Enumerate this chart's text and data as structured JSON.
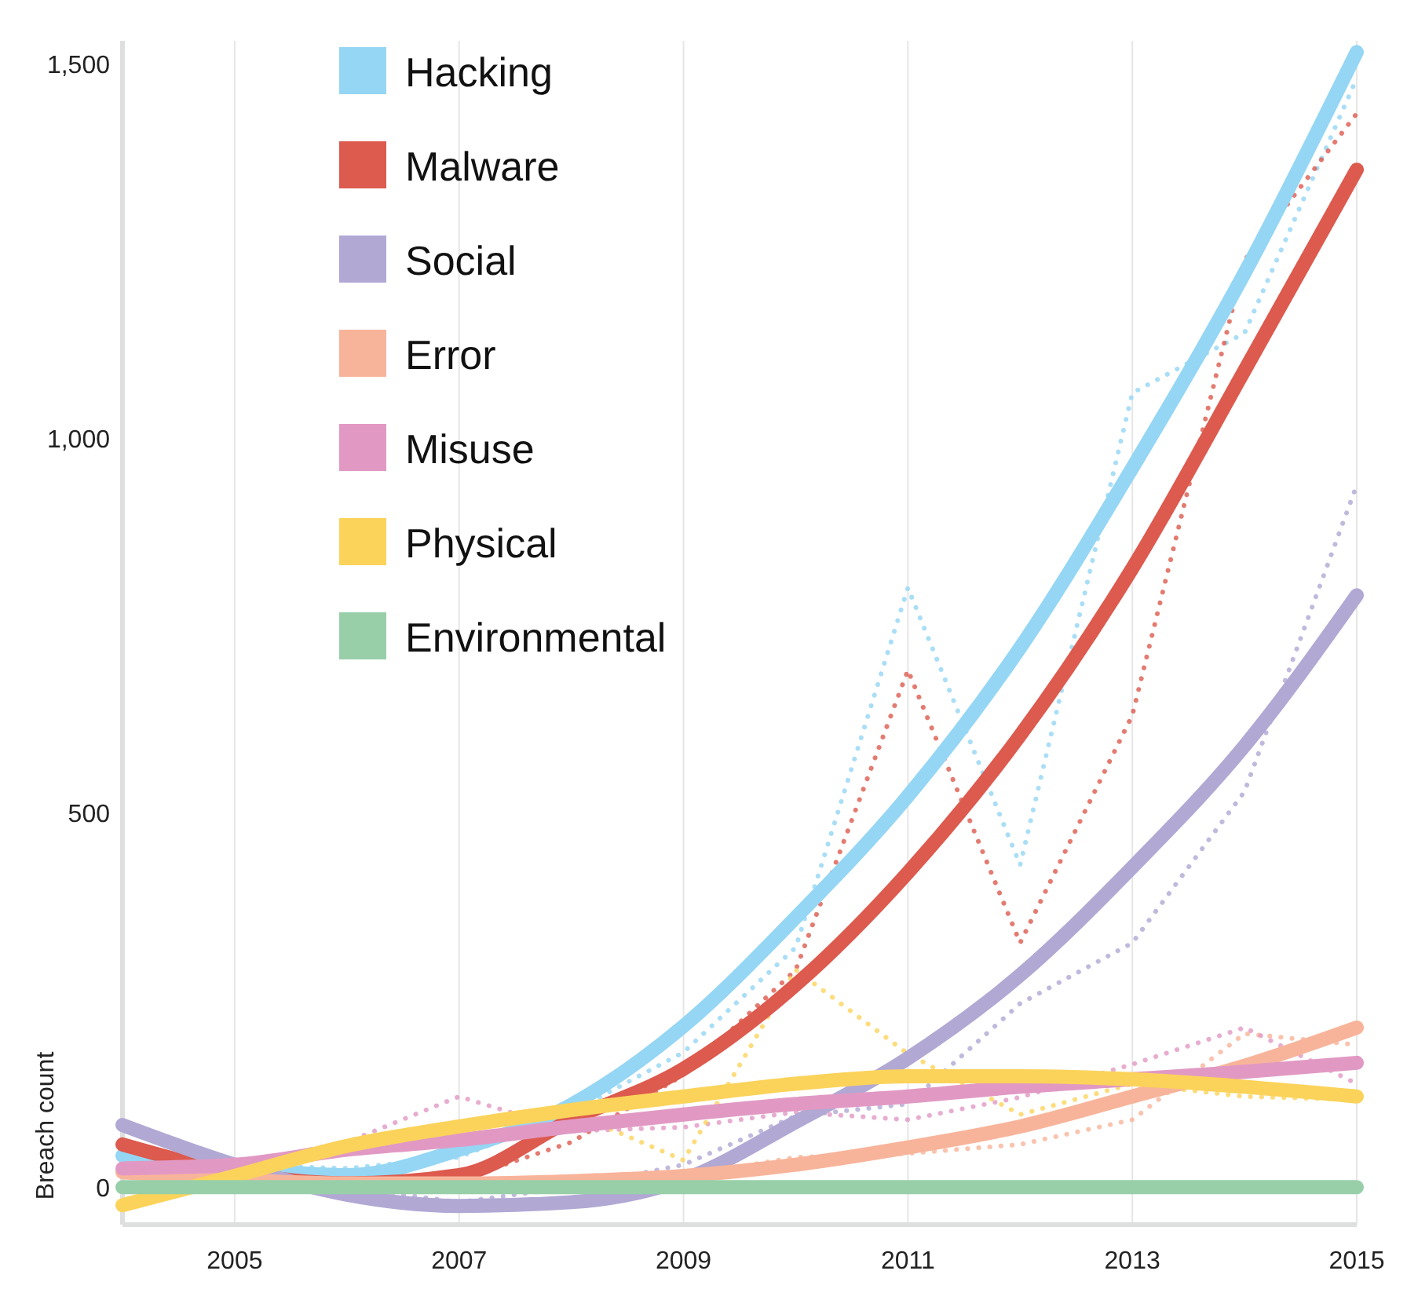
{
  "chart_data": {
    "type": "line",
    "ylabel": "Breach count",
    "x": [
      2004,
      2005,
      2006,
      2007,
      2008,
      2009,
      2010,
      2011,
      2012,
      2013,
      2014,
      2015
    ],
    "xlim": [
      2004,
      2015
    ],
    "xticks": [
      2005,
      2007,
      2009,
      2011,
      2013,
      2015
    ],
    "ylim": [
      -50,
      1530
    ],
    "yticks": [
      0,
      500,
      {
        "value": 1000,
        "label": "1,000"
      },
      {
        "value": 1500,
        "label": "1,500"
      }
    ],
    "grid": "x",
    "legend": "top left",
    "marker": "none",
    "series": [
      {
        "color": "#94d6f4",
        "line_style": "dotted",
        "values": [
          40,
          30,
          25,
          40,
          100,
          180,
          320,
          800,
          430,
          1060,
          1140,
          1480
        ]
      },
      {
        "color": "#dd5a4e",
        "line_style": "dotted",
        "values": [
          60,
          20,
          10,
          10,
          60,
          150,
          290,
          690,
          326,
          630,
          1237,
          1433
        ]
      },
      {
        "color": "#b1a8d4",
        "line_style": "dotted",
        "values": [
          80,
          30,
          0,
          -20,
          0,
          30,
          95,
          111,
          245,
          326,
          528,
          937
        ]
      },
      {
        "color": "#f8b49a",
        "line_style": "dotted",
        "values": [
          20,
          10,
          5,
          5,
          8,
          15,
          40,
          45,
          57,
          90,
          205,
          190
        ]
      },
      {
        "color": "#e199c4",
        "line_style": "dotted",
        "values": [
          25,
          30,
          60,
          121,
          75,
          80,
          100,
          90,
          120,
          164,
          213,
          138
        ]
      },
      {
        "color": "#fbd35a",
        "line_style": "dotted",
        "values": [
          -20,
          20,
          60,
          80,
          100,
          36,
          290,
          178,
          97,
          138,
          121,
          117
        ]
      },
      {
        "name": "Hacking",
        "color": "#94d6f4",
        "line_style": "solid",
        "values": [
          42,
          26,
          16,
          50,
          110,
          215,
          360,
          522,
          720,
          960,
          1220,
          1515
        ]
      },
      {
        "name": "Malware",
        "color": "#dd5a4e",
        "line_style": "solid",
        "values": [
          57,
          20,
          5,
          16,
          90,
          158,
          270,
          420,
          603,
          826,
          1090,
          1358
        ]
      },
      {
        "name": "Social",
        "color": "#b1a8d4",
        "line_style": "solid",
        "values": [
          83,
          30,
          -10,
          -25,
          -20,
          10,
          87,
          172,
          283,
          427,
          589,
          790
        ]
      },
      {
        "name": "Error",
        "color": "#f8b49a",
        "line_style": "solid",
        "values": [
          20,
          10,
          5,
          5,
          8,
          15,
          30,
          53,
          81,
          121,
          162,
          213
        ]
      },
      {
        "name": "Misuse",
        "color": "#e199c4",
        "line_style": "solid",
        "values": [
          25,
          30,
          50,
          63,
          81,
          97,
          111,
          121,
          134,
          144,
          154,
          166
        ]
      },
      {
        "name": "Physical",
        "color": "#fbd35a",
        "line_style": "solid",
        "values": [
          -24,
          15,
          55,
          81,
          103,
          121,
          138,
          148,
          148,
          144,
          134,
          121
        ]
      },
      {
        "name": "Environmental",
        "color": "#98cfa9",
        "line_style": "solid",
        "values": [
          0,
          0,
          0,
          0,
          0,
          0,
          0,
          0,
          0,
          0,
          0,
          0
        ]
      }
    ]
  }
}
